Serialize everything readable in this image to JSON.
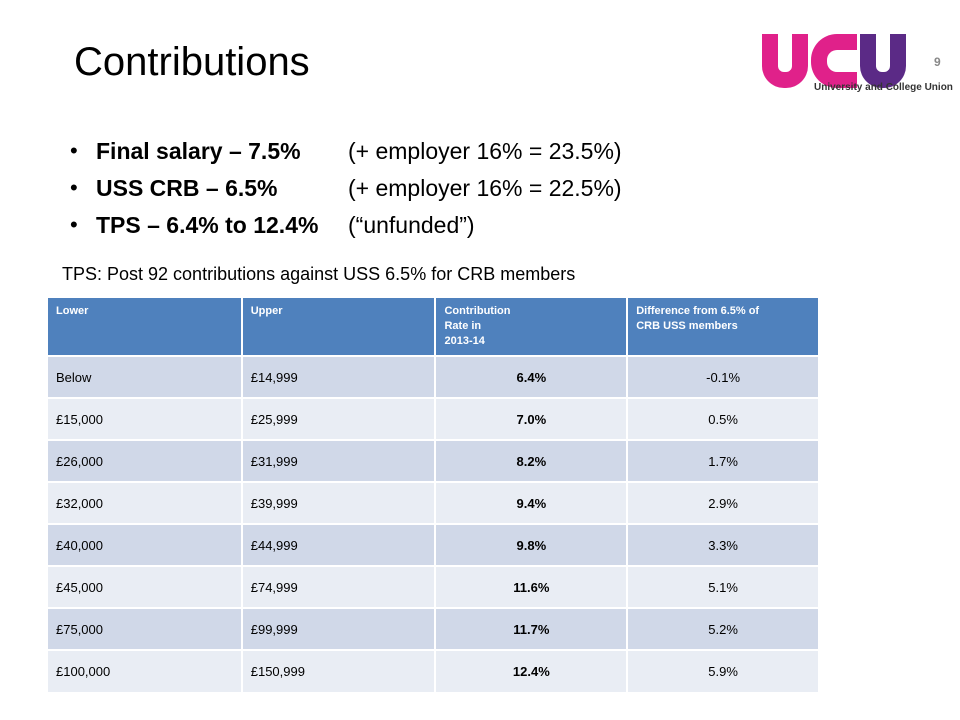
{
  "slide": {
    "title": "Contributions",
    "page_number": "9",
    "logo": {
      "letters": [
        "u",
        "c",
        "u"
      ],
      "caption": "University and College Union",
      "colors": {
        "pink": "#e0218a",
        "purple": "#5b2a86"
      }
    },
    "bullets": [
      {
        "strong": "Final salary – 7.5%",
        "rest": "(+ employer 16% = 23.5%)"
      },
      {
        "strong": "USS CRB – 6.5%",
        "rest": "(+ employer 16% = 22.5%)"
      },
      {
        "strong": "TPS – 6.4% to 12.4%",
        "rest": "(“unfunded”)"
      }
    ],
    "table_caption": "TPS: Post 92 contributions against USS 6.5% for CRB members"
  },
  "table": {
    "header_color": "#4f81bd",
    "columns": [
      "Lower",
      "Upper",
      "Contribution Rate in 2013-14",
      "Difference from 6.5% of CRB USS members"
    ],
    "column_lines": [
      [
        "Lower"
      ],
      [
        "Upper"
      ],
      [
        "Contribution",
        "Rate in",
        "2013-14"
      ],
      [
        "Difference from 6.5% of",
        "CRB USS members"
      ]
    ],
    "rows": [
      [
        "Below",
        "£14,999",
        "6.4%",
        "-0.1%"
      ],
      [
        "£15,000",
        "£25,999",
        "7.0%",
        "0.5%"
      ],
      [
        "£26,000",
        "£31,999",
        "8.2%",
        "1.7%"
      ],
      [
        "£32,000",
        "£39,999",
        "9.4%",
        "2.9%"
      ],
      [
        "£40,000",
        "£44,999",
        "9.8%",
        "3.3%"
      ],
      [
        "£45,000",
        "£74,999",
        "11.6%",
        "5.1%"
      ],
      [
        "£75,000",
        "£99,999",
        "11.7%",
        "5.2%"
      ],
      [
        "£100,000",
        "£150,999",
        "12.4%",
        "5.9%"
      ]
    ]
  }
}
